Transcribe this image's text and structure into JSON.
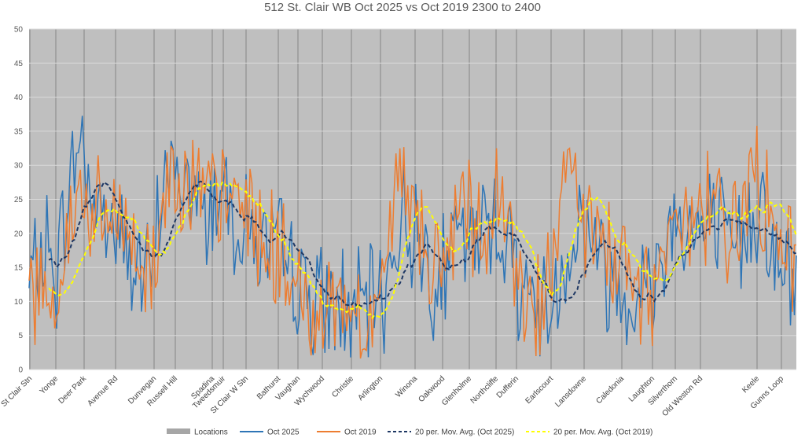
{
  "chart_data": {
    "type": "line",
    "title": "512 St. Clair WB Oct 2025 vs Oct 2019 2300 to 2400",
    "xlabel": "",
    "ylabel": "",
    "ylim": [
      0,
      50
    ],
    "yticks": [
      0,
      5,
      10,
      15,
      20,
      25,
      30,
      35,
      40,
      45,
      50
    ],
    "grid": true,
    "legend_position": "bottom",
    "n_points": 378,
    "categories": [
      {
        "label": "St Clair Stn",
        "index": 0
      },
      {
        "label": "Yonge",
        "index": 14
      },
      {
        "label": "Deer Park",
        "index": 39
      },
      {
        "label": "Avenue Rd",
        "index": 61
      },
      {
        "label": "Dunvegan",
        "index": 79
      },
      {
        "label": "Russell Hill",
        "index": 97
      },
      {
        "label": "Spadina",
        "index": 115
      },
      {
        "label": "Tweedsmuir",
        "index": 127
      },
      {
        "label": "St Clair W Stn",
        "index": 139
      },
      {
        "label": "Bathurst",
        "index": 156
      },
      {
        "label": "Vaughan",
        "index": 175
      },
      {
        "label": "Wychwood",
        "index": 184
      },
      {
        "label": "Christie",
        "index": 201
      },
      {
        "label": "Arlington",
        "index": 219
      },
      {
        "label": "Winona",
        "index": 238
      },
      {
        "label": "Oakwood",
        "index": 256
      },
      {
        "label": "Glenholme",
        "index": 273
      },
      {
        "label": "Northcliffe",
        "index": 290
      },
      {
        "label": "Dufferin",
        "index": 306
      },
      {
        "label": "Earlscourt",
        "index": 326
      },
      {
        "label": "Lansdowne",
        "index": 346
      },
      {
        "label": "Caledonia",
        "index": 368
      }
    ],
    "categories_tail": [
      {
        "label": "Laughton",
        "index": 0
      },
      {
        "label": "Silverthorn",
        "index": 0
      },
      {
        "label": "Old Weston Rd",
        "index": 0
      },
      {
        "label": "Keele",
        "index": 0
      },
      {
        "label": "Gunns Loop",
        "index": 0
      }
    ],
    "legend": [
      {
        "name": "Locations",
        "color": "#a6a6a6",
        "style": "bar"
      },
      {
        "name": "Oct 2025",
        "color": "#2e75b6",
        "style": "solid"
      },
      {
        "name": "Oct 2019",
        "color": "#ed7d31",
        "style": "solid"
      },
      {
        "name": "20 per. Mov. Avg. (Oct 2025)",
        "color": "#1f3864",
        "style": "dashed"
      },
      {
        "name": "20 per. Mov. Avg. (Oct 2019)",
        "color": "#ffff00",
        "style": "dashed"
      }
    ],
    "series_anchors": {
      "oct2025": [
        [
          0,
          12
        ],
        [
          8,
          18
        ],
        [
          14,
          14
        ],
        [
          20,
          28
        ],
        [
          26,
          34
        ],
        [
          32,
          24
        ],
        [
          39,
          22
        ],
        [
          46,
          19
        ],
        [
          54,
          14
        ],
        [
          61,
          13
        ],
        [
          66,
          30
        ],
        [
          72,
          28
        ],
        [
          79,
          27
        ],
        [
          86,
          22
        ],
        [
          92,
          26
        ],
        [
          97,
          27
        ],
        [
          104,
          21
        ],
        [
          110,
          20
        ],
        [
          115,
          18
        ],
        [
          121,
          17
        ],
        [
          127,
          16
        ],
        [
          133,
          12
        ],
        [
          139,
          11
        ],
        [
          146,
          8
        ],
        [
          152,
          10
        ],
        [
          156,
          9
        ],
        [
          162,
          8
        ],
        [
          168,
          9
        ],
        [
          175,
          12
        ],
        [
          180,
          18
        ],
        [
          184,
          22
        ],
        [
          190,
          20
        ],
        [
          196,
          17
        ],
        [
          201,
          13
        ],
        [
          206,
          15
        ],
        [
          212,
          20
        ],
        [
          219,
          17
        ],
        [
          226,
          23
        ],
        [
          232,
          22
        ],
        [
          238,
          16
        ],
        [
          244,
          12
        ],
        [
          250,
          9
        ],
        [
          256,
          9
        ],
        [
          262,
          14
        ],
        [
          268,
          20
        ],
        [
          273,
          22
        ],
        [
          280,
          18
        ],
        [
          286,
          13
        ],
        [
          290,
          12
        ],
        [
          296,
          12
        ],
        [
          300,
          12
        ],
        [
          306,
          12
        ],
        [
          312,
          17
        ],
        [
          318,
          24
        ],
        [
          326,
          20
        ],
        [
          332,
          20
        ],
        [
          338,
          22
        ],
        [
          346,
          16
        ],
        [
          352,
          20
        ],
        [
          358,
          24
        ],
        [
          362,
          25
        ],
        [
          368,
          15
        ],
        [
          374,
          13
        ],
        [
          378,
          12
        ]
      ],
      "oct2019": [
        [
          0,
          11
        ],
        [
          8,
          13
        ],
        [
          14,
          12
        ],
        [
          20,
          20
        ],
        [
          26,
          26
        ],
        [
          32,
          22
        ],
        [
          39,
          21
        ],
        [
          46,
          22
        ],
        [
          54,
          16
        ],
        [
          61,
          14
        ],
        [
          66,
          25
        ],
        [
          72,
          31
        ],
        [
          79,
          28
        ],
        [
          86,
          24
        ],
        [
          92,
          25
        ],
        [
          97,
          24
        ],
        [
          104,
          25
        ],
        [
          110,
          23
        ],
        [
          115,
          19
        ],
        [
          121,
          17
        ],
        [
          127,
          15
        ],
        [
          133,
          10
        ],
        [
          139,
          8
        ],
        [
          146,
          9
        ],
        [
          152,
          11
        ],
        [
          156,
          10
        ],
        [
          162,
          8
        ],
        [
          168,
          9
        ],
        [
          175,
          14
        ],
        [
          180,
          23
        ],
        [
          184,
          27
        ],
        [
          190,
          24
        ],
        [
          196,
          16
        ],
        [
          201,
          12
        ],
        [
          206,
          17
        ],
        [
          212,
          24
        ],
        [
          219,
          20
        ],
        [
          226,
          20
        ],
        [
          232,
          26
        ],
        [
          238,
          16
        ],
        [
          244,
          11
        ],
        [
          250,
          10
        ],
        [
          256,
          11
        ],
        [
          262,
          22
        ],
        [
          268,
          27
        ],
        [
          273,
          24
        ],
        [
          280,
          17
        ],
        [
          286,
          16
        ],
        [
          290,
          17
        ],
        [
          296,
          13
        ],
        [
          300,
          12
        ],
        [
          306,
          12
        ],
        [
          312,
          18
        ],
        [
          318,
          23
        ],
        [
          326,
          17
        ],
        [
          332,
          22
        ],
        [
          338,
          27
        ],
        [
          346,
          17
        ],
        [
          352,
          25
        ],
        [
          358,
          30
        ],
        [
          362,
          25
        ],
        [
          368,
          17
        ],
        [
          374,
          17
        ],
        [
          378,
          16
        ]
      ]
    }
  }
}
